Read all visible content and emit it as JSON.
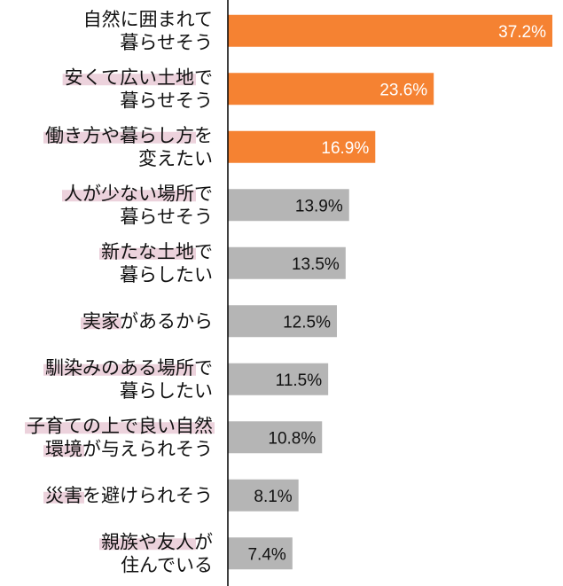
{
  "chart_data": {
    "type": "bar",
    "orientation": "horizontal",
    "categories": [
      [
        "自然に囲まれて",
        "暮らせそう"
      ],
      [
        "安くて広い土地で",
        "暮らせそう"
      ],
      [
        "働き方や暮らし方を",
        "変えたい"
      ],
      [
        "人が少ない場所で",
        "暮らせそう"
      ],
      [
        "新たな土地で",
        "暮らしたい"
      ],
      [
        "実家があるから"
      ],
      [
        "馴染みのある場所で",
        "暮らしたい"
      ],
      [
        "子育ての上で良い自然",
        "環境が与えられそう"
      ],
      [
        "災害を避けられそう"
      ],
      [
        "親族や友人が",
        "住んでいる"
      ]
    ],
    "values": [
      37.2,
      23.6,
      16.9,
      13.9,
      13.5,
      12.5,
      11.5,
      10.8,
      8.1,
      7.4
    ],
    "value_labels": [
      "37.2%",
      "23.6%",
      "16.9%",
      "13.9%",
      "13.5%",
      "12.5%",
      "11.5%",
      "10.8%",
      "8.1%",
      "7.4%"
    ],
    "xlim": [
      0,
      37.2
    ],
    "colors": {
      "highlight": "#f58232",
      "normal": "#b5b5b5",
      "label_highlight": "#ecd2dc",
      "axis": "#000000"
    },
    "highlighted_bars": [
      true,
      true,
      true,
      false,
      false,
      false,
      false,
      false,
      false,
      false
    ],
    "highlighted_label_spans": [
      [],
      [
        "安くて広い土地"
      ],
      [
        "働き方や暮らし方"
      ],
      [
        "人が少ない場所"
      ],
      [
        "新たな土地"
      ],
      [
        "実家"
      ],
      [
        "馴染みのある場所"
      ],
      [
        "子育ての上で良い自然",
        "環境"
      ],
      [
        "災害"
      ],
      [
        "親族や友人"
      ]
    ],
    "grid": false,
    "legend": "none"
  }
}
